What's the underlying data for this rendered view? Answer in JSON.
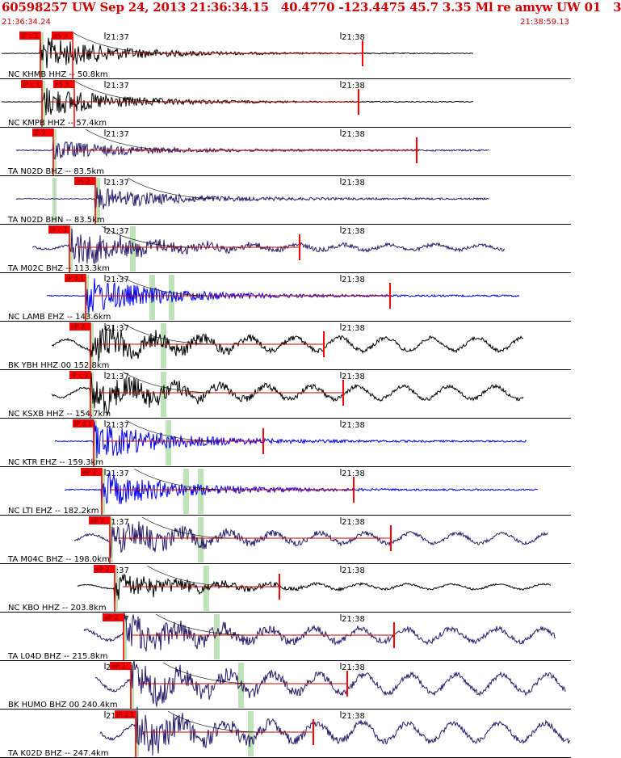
{
  "header": {
    "title": "60598257 UW Sep 24, 2013 21:36:34.15   40.4770 -123.4475 45.7 3.35 Ml re amyw UW 01   3",
    "start_time": "21:36:34.24",
    "end_time": "21:38:59.13"
  },
  "minute_labels": [
    "21:37",
    "21:38"
  ],
  "colors": {
    "title_red": "#cc0000",
    "pick_red": "#ff0000",
    "window_green": "#b8e0b0",
    "trace_black": "#000000",
    "trace_navy": "#2a1a6a",
    "trace_blue": "#0000ee",
    "residual_red": "#cc0000"
  },
  "traces": [
    {
      "label": "NC KHMB HHZ -- 50.8km",
      "color": "black",
      "picks": [
        "iP c 1",
        "eS 3"
      ]
    },
    {
      "label": "NC KMPB HHZ -- 57.4km",
      "color": "black",
      "picks": [
        "iP c 1",
        "eS 3"
      ]
    },
    {
      "label": "TA N02D BHZ -- 83.5km",
      "color": "navy",
      "picks": [
        "iP 2"
      ]
    },
    {
      "label": "TA N02D BHN -- 83.5km",
      "color": "navy",
      "picks": [
        "eS 2"
      ]
    },
    {
      "label": "TA M02C BHZ -- 113.3km",
      "color": "navy",
      "picks": [
        "iP c 1"
      ]
    },
    {
      "label": "NC LAMB EHZ -- 143.6km",
      "color": "blue",
      "picks": [
        "iP d 1"
      ]
    },
    {
      "label": "BK YBH HHZ 00 152.8km",
      "color": "black",
      "picks": [
        "eP 2"
      ]
    },
    {
      "label": "NC KSXB HHZ -- 154.7km",
      "color": "black",
      "picks": [
        "iP c 1"
      ]
    },
    {
      "label": "NC KTR EHZ -- 159.3km",
      "color": "blue",
      "picks": [
        "iP d 1"
      ]
    },
    {
      "label": "NC LTI EHZ -- 182.2km",
      "color": "blue",
      "picks": [
        "eP 2"
      ]
    },
    {
      "label": "TA M04C BHZ -- 198.0km",
      "color": "navy",
      "picks": [
        "eP 2"
      ]
    },
    {
      "label": "NC KBO HHZ -- 203.8km",
      "color": "black",
      "picks": [
        "eP 2"
      ]
    },
    {
      "label": "TA L04D BHZ -- 215.8km",
      "color": "navy",
      "picks": [
        "eP 2"
      ]
    },
    {
      "label": "BK HUMO BHZ 00 240.4km",
      "color": "navy",
      "picks": [
        "eP 2"
      ]
    },
    {
      "label": "TA K02D BHZ -- 247.4km",
      "color": "navy",
      "picks": [
        "iP d 1"
      ]
    }
  ]
}
